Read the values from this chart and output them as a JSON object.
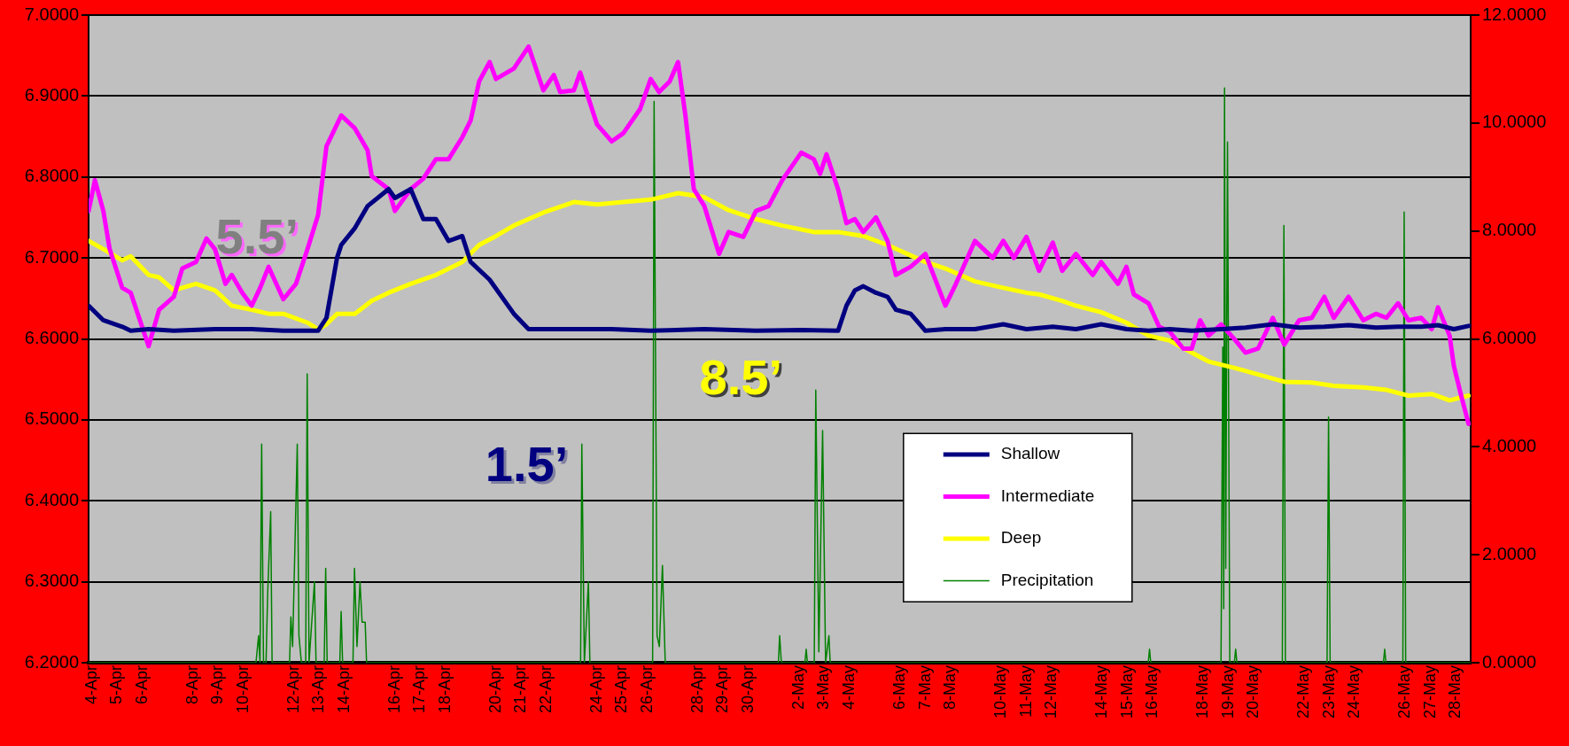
{
  "chart_data": {
    "type": "line",
    "grid": "y",
    "marker": "none",
    "line_style": "solid",
    "legend": "bottom right",
    "xlim": [
      "--04-03T21:00",
      "--05-28T14:00"
    ],
    "xticks": [
      {
        "value": "--04-04",
        "label": "4-Apr"
      },
      {
        "value": "--04-05",
        "label": "5-Apr"
      },
      {
        "value": "--04-06",
        "label": "6-Apr"
      },
      {
        "value": "--04-08",
        "label": "8-Apr"
      },
      {
        "value": "--04-09",
        "label": "9-Apr"
      },
      {
        "value": "--04-10",
        "label": "10-Apr"
      },
      {
        "value": "--04-12",
        "label": "12-Apr"
      },
      {
        "value": "--04-13",
        "label": "13-Apr"
      },
      {
        "value": "--04-14",
        "label": "14-Apr"
      },
      {
        "value": "--04-16",
        "label": "16-Apr"
      },
      {
        "value": "--04-17",
        "label": "17-Apr"
      },
      {
        "value": "--04-18",
        "label": "18-Apr"
      },
      {
        "value": "--04-20",
        "label": "20-Apr"
      },
      {
        "value": "--04-21",
        "label": "21-Apr"
      },
      {
        "value": "--04-22",
        "label": "22-Apr"
      },
      {
        "value": "--04-24",
        "label": "24-Apr"
      },
      {
        "value": "--04-25",
        "label": "25-Apr"
      },
      {
        "value": "--04-26",
        "label": "26-Apr"
      },
      {
        "value": "--04-28",
        "label": "28-Apr"
      },
      {
        "value": "--04-29",
        "label": "29-Apr"
      },
      {
        "value": "--04-30",
        "label": "30-Apr"
      },
      {
        "value": "--05-02",
        "label": "2-May"
      },
      {
        "value": "--05-03",
        "label": "3-May"
      },
      {
        "value": "--05-04",
        "label": "4-May"
      },
      {
        "value": "--05-06",
        "label": "6-May"
      },
      {
        "value": "--05-07",
        "label": "7-May"
      },
      {
        "value": "--05-08",
        "label": "8-May"
      },
      {
        "value": "--05-10",
        "label": "10-May"
      },
      {
        "value": "--05-11",
        "label": "11-May"
      },
      {
        "value": "--05-12",
        "label": "12-May"
      },
      {
        "value": "--05-14",
        "label": "14-May"
      },
      {
        "value": "--05-15",
        "label": "15-May"
      },
      {
        "value": "--05-16",
        "label": "16-May"
      },
      {
        "value": "--05-18",
        "label": "18-May"
      },
      {
        "value": "--05-19",
        "label": "19-May"
      },
      {
        "value": "--05-20",
        "label": "20-May"
      },
      {
        "value": "--05-22",
        "label": "22-May"
      },
      {
        "value": "--05-23",
        "label": "23-May"
      },
      {
        "value": "--05-24",
        "label": "24-May"
      },
      {
        "value": "--05-26",
        "label": "26-May"
      },
      {
        "value": "--05-27",
        "label": "27-May"
      },
      {
        "value": "--05-28",
        "label": "28-May"
      }
    ],
    "ylim": [
      6.2,
      7.0
    ],
    "yticks": [
      {
        "value": 6.2,
        "label": "6.2000"
      },
      {
        "value": 6.3,
        "label": "6.3000"
      },
      {
        "value": 6.4,
        "label": "6.4000"
      },
      {
        "value": 6.5,
        "label": "6.5000"
      },
      {
        "value": 6.6,
        "label": "6.6000"
      },
      {
        "value": 6.7,
        "label": "6.7000"
      },
      {
        "value": 6.8,
        "label": "6.8000"
      },
      {
        "value": 6.9,
        "label": "6.9000"
      },
      {
        "value": 7.0,
        "label": "7.0000"
      }
    ],
    "y2lim": [
      0,
      12
    ],
    "y2ticks": [
      {
        "value": 0,
        "label": "0.0000"
      },
      {
        "value": 2,
        "label": "2.0000"
      },
      {
        "value": 4,
        "label": "4.0000"
      },
      {
        "value": 6,
        "label": "6.0000"
      },
      {
        "value": 8,
        "label": "8.0000"
      },
      {
        "value": 10,
        "label": "10.0000"
      },
      {
        "value": 12,
        "label": "12.0000"
      }
    ],
    "annotations": [
      "5.5’",
      "1.5’",
      "8.5’"
    ],
    "series": [
      {
        "name": "Shallow",
        "color": "#000080",
        "x": [
          "--04-03T21:00",
          "--04-04T11:00",
          "--04-05T05:00",
          "--04-05T13:00",
          "--04-06T06:00",
          "--04-07T06:00",
          "--04-08T21:00",
          "--04-10T08:00",
          "--04-11T14:00",
          "--04-12T13:00",
          "--04-12T23:00",
          "--04-13T07:00",
          "--04-13T17:00",
          "--04-13T21:00",
          "--04-14T10:00",
          "--04-14T22:00",
          "--04-15T18:00",
          "--04-16T00:00",
          "--04-16T15:00",
          "--04-17T03:00",
          "--04-17T15:00",
          "--04-18T03:00",
          "--04-18T16:00",
          "--04-19T00:00",
          "--04-19T18:00",
          "--04-20T17:00",
          "--04-21T07:00",
          "--04-22T07:00",
          "--04-23T02:00",
          "--04-24T14:00",
          "--04-26T03:00",
          "--04-28T06:00",
          "--04-30T07:00",
          "--05-02T02:00",
          "--05-03T13:00",
          "--05-03T21:00",
          "--05-04T05:00",
          "--05-04T13:00",
          "--05-05T01:00",
          "--05-05T12:00",
          "--05-05T20:00",
          "--05-06T10:00",
          "--05-07T00:00",
          "--05-07T19:00",
          "--05-08T23:00",
          "--05-10T02:00",
          "--05-11T00:00",
          "--05-12T01:00",
          "--05-12T23:00",
          "--05-13T23:00",
          "--05-14T23:00",
          "--05-15T20:00",
          "--05-16T16:00",
          "--05-17T13:00",
          "--05-18T17:00",
          "--05-19T16:00",
          "--05-20T18:00",
          "--05-21T19:00",
          "--05-22T19:00",
          "--05-23T18:00",
          "--05-24T20:00",
          "--05-25T17:00",
          "--05-26T15:00",
          "--05-27T07:00",
          "--05-27T22:00",
          "--05-28T12:00"
        ],
        "values": [
          6.641,
          6.623,
          6.615,
          6.61,
          6.612,
          6.61,
          6.612,
          6.612,
          6.61,
          6.61,
          6.61,
          6.626,
          6.7,
          6.716,
          6.737,
          6.764,
          6.785,
          6.774,
          6.785,
          6.748,
          6.748,
          6.721,
          6.727,
          6.695,
          6.673,
          6.631,
          6.612,
          6.612,
          6.612,
          6.612,
          6.61,
          6.612,
          6.61,
          6.611,
          6.61,
          6.641,
          6.66,
          6.665,
          6.657,
          6.652,
          6.636,
          6.631,
          6.61,
          6.612,
          6.612,
          6.618,
          6.612,
          6.615,
          6.612,
          6.618,
          6.612,
          6.61,
          6.612,
          6.61,
          6.612,
          6.614,
          6.618,
          6.614,
          6.615,
          6.617,
          6.614,
          6.615,
          6.615,
          6.617,
          6.612,
          6.616
        ]
      },
      {
        "name": "Intermediate",
        "color": "#ff00ff",
        "x": [
          "--04-03T21:00",
          "--04-04T03:00",
          "--04-04T11:00",
          "--04-04T17:00",
          "--04-05T05:00",
          "--04-05T13:00",
          "--04-06T06:00",
          "--04-06T16:00",
          "--04-07T06:00",
          "--04-07T14:00",
          "--04-08T03:00",
          "--04-08T13:00",
          "--04-08T21:00",
          "--04-09T07:00",
          "--04-09T13:00",
          "--04-09T23:00",
          "--04-10T08:00",
          "--04-10T16:00",
          "--04-11T00:00",
          "--04-11T14:00",
          "--04-12T02:00",
          "--04-12T13:00",
          "--04-12T23:00",
          "--04-13T07:00",
          "--04-13T17:00",
          "--04-13T21:00",
          "--04-14T10:00",
          "--04-14T22:00",
          "--04-15T02:00",
          "--04-15T18:00",
          "--04-16T00:00",
          "--04-16T15:00",
          "--04-17T03:00",
          "--04-17T15:00",
          "--04-18T03:00",
          "--04-18T16:00",
          "--04-19T00:00",
          "--04-19T08:00",
          "--04-19T18:00",
          "--04-20T00:00",
          "--04-20T17:00",
          "--04-21T07:00",
          "--04-21T21:00",
          "--04-22T07:00",
          "--04-22T13:00",
          "--04-23T02:00",
          "--04-23T08:00",
          "--04-24T00:00",
          "--04-24T14:00",
          "--04-25T01:00",
          "--04-25T17:00",
          "--04-26T03:00",
          "--04-26T11:00",
          "--04-26T21:00",
          "--04-27T05:00",
          "--04-27T12:00",
          "--04-27T20:00",
          "--04-28T06:00",
          "--04-28T20:00",
          "--04-29T05:00",
          "--04-29T19:00",
          "--04-30T07:00",
          "--04-30T19:00",
          "--05-01T08:00",
          "--05-02T02:00",
          "--05-02T14:00",
          "--05-02T20:00",
          "--05-03T02:00",
          "--05-03T13:00",
          "--05-03T21:00",
          "--05-04T05:00",
          "--05-04T13:00",
          "--05-05T01:00",
          "--05-05T12:00",
          "--05-05T20:00",
          "--05-06T10:00",
          "--05-07T00:00",
          "--05-07T19:00",
          "--05-08T05:00",
          "--05-08T23:00",
          "--05-09T16:00",
          "--05-10T02:00",
          "--05-10T12:00",
          "--05-11T00:00",
          "--05-11T12:00",
          "--05-12T01:00",
          "--05-12T10:00",
          "--05-12T23:00",
          "--05-13T15:00",
          "--05-13T23:00",
          "--05-14T15:00",
          "--05-14T23:00",
          "--05-15T06:00",
          "--05-15T20:00",
          "--05-16T06:00",
          "--05-16T16:00",
          "--05-17T05:00",
          "--05-17T13:00",
          "--05-17T21:00",
          "--05-18T05:00",
          "--05-18T17:00",
          "--05-19T06:00",
          "--05-19T16:00",
          "--05-20T04:00",
          "--05-20T18:00",
          "--05-21T05:00",
          "--05-21T19:00",
          "--05-22T07:00",
          "--05-22T19:00",
          "--05-23T04:00",
          "--05-23T18:00",
          "--05-24T08:00",
          "--05-24T20:00",
          "--05-25T06:00",
          "--05-25T17:00",
          "--05-26T03:00",
          "--05-26T15:00",
          "--05-27T01:00",
          "--05-27T07:00",
          "--05-27T18:00",
          "--05-27T22:00",
          "--05-28T04:00",
          "--05-28T12:00"
        ],
        "values": [
          6.758,
          6.796,
          6.758,
          6.711,
          6.663,
          6.657,
          6.591,
          6.636,
          6.652,
          6.687,
          6.695,
          6.724,
          6.711,
          6.668,
          6.679,
          6.657,
          6.641,
          6.663,
          6.689,
          6.649,
          6.668,
          6.711,
          6.753,
          6.838,
          6.865,
          6.876,
          6.86,
          6.833,
          6.801,
          6.785,
          6.758,
          6.785,
          6.798,
          6.822,
          6.822,
          6.849,
          6.87,
          6.918,
          6.942,
          6.921,
          6.934,
          6.961,
          6.907,
          6.926,
          6.905,
          6.907,
          6.929,
          6.865,
          6.844,
          6.854,
          6.884,
          6.921,
          6.905,
          6.918,
          6.942,
          6.876,
          6.785,
          6.764,
          6.705,
          6.732,
          6.726,
          6.758,
          6.764,
          6.796,
          6.83,
          6.822,
          6.804,
          6.828,
          6.785,
          6.743,
          6.748,
          6.732,
          6.75,
          6.721,
          6.679,
          6.689,
          6.705,
          6.641,
          6.668,
          6.721,
          6.7,
          6.721,
          6.7,
          6.726,
          6.684,
          6.719,
          6.684,
          6.705,
          6.679,
          6.695,
          6.668,
          6.689,
          6.655,
          6.644,
          6.615,
          6.609,
          6.588,
          6.588,
          6.623,
          6.604,
          6.618,
          6.599,
          6.583,
          6.588,
          6.626,
          6.593,
          6.623,
          6.626,
          6.652,
          6.626,
          6.652,
          6.623,
          6.631,
          6.626,
          6.644,
          6.623,
          6.626,
          6.612,
          6.639,
          6.604,
          6.567,
          6.535,
          6.495
        ]
      },
      {
        "name": "Deep",
        "color": "#ffff00",
        "x": [
          "--04-03T21:00",
          "--04-04T11:00",
          "--04-05T05:00",
          "--04-05T13:00",
          "--04-06T06:00",
          "--04-06T16:00",
          "--04-07T06:00",
          "--04-07T14:00",
          "--04-08T03:00",
          "--04-08T21:00",
          "--04-09T13:00",
          "--04-10T08:00",
          "--04-11T00:00",
          "--04-11T14:00",
          "--04-12T13:00",
          "--04-12T23:00",
          "--04-13T07:00",
          "--04-13T17:00",
          "--04-14T10:00",
          "--04-15T02:00",
          "--04-15T18:00",
          "--04-16T15:00",
          "--04-17T15:00",
          "--04-18T16:00",
          "--04-19T08:00",
          "--04-20T00:00",
          "--04-20T17:00",
          "--04-21T21:00",
          "--04-23T02:00",
          "--04-24T00:00",
          "--04-25T01:00",
          "--04-26T03:00",
          "--04-27T05:00",
          "--04-28T06:00",
          "--04-29T05:00",
          "--04-30T07:00",
          "--05-01T08:00",
          "--05-02T14:00",
          "--05-03T13:00",
          "--05-04T13:00",
          "--05-05T12:00",
          "--05-06T10:00",
          "--05-07T00:00",
          "--05-07T19:00",
          "--05-08T23:00",
          "--05-10T02:00",
          "--05-11T00:00",
          "--05-11T12:00",
          "--05-12T10:00",
          "--05-12T23:00",
          "--05-13T23:00",
          "--05-14T23:00",
          "--05-15T20:00",
          "--05-16T16:00",
          "--05-17T13:00",
          "--05-18T05:00",
          "--05-19T06:00",
          "--05-20T04:00",
          "--05-21T05:00",
          "--05-22T07:00",
          "--05-23T04:00",
          "--05-24T08:00",
          "--05-25T06:00",
          "--05-26T03:00",
          "--05-27T01:00",
          "--05-27T18:00",
          "--05-28T12:00"
        ],
        "values": [
          6.721,
          6.711,
          6.697,
          6.702,
          6.679,
          6.676,
          6.66,
          6.663,
          6.668,
          6.66,
          6.641,
          6.636,
          6.631,
          6.631,
          6.62,
          6.612,
          6.618,
          6.631,
          6.631,
          6.647,
          6.657,
          6.668,
          6.679,
          6.695,
          6.716,
          6.727,
          6.74,
          6.756,
          6.769,
          6.766,
          6.769,
          6.772,
          6.78,
          6.775,
          6.759,
          6.748,
          6.74,
          6.732,
          6.732,
          6.727,
          6.716,
          6.703,
          6.695,
          6.687,
          6.671,
          6.663,
          6.657,
          6.655,
          6.647,
          6.641,
          6.633,
          6.62,
          6.604,
          6.598,
          6.583,
          6.572,
          6.564,
          6.556,
          6.547,
          6.546,
          6.542,
          6.54,
          6.537,
          6.53,
          6.532,
          6.524,
          6.53
        ]
      },
      {
        "name": "Precipitation",
        "color": "#008000",
        "axis": "y2",
        "x": [
          "--04-03T21:00",
          "--04-10T12:00",
          "--04-10T14:30",
          "--04-10T15:50",
          "--04-10T17:25",
          "--04-10T19:10",
          "--04-10T21:35",
          "--04-10T23:05",
          "--04-11T02:00",
          "--04-11T03:20",
          "--04-11T19:55",
          "--04-11T21:10",
          "--04-11T22:50",
          "--04-12T03:15",
          "--04-12T04:50",
          "--04-12T07:10",
          "--04-12T11:15",
          "--04-12T12:40",
          "--04-12T14:25",
          "--04-12T19:35",
          "--04-12T21:05",
          "--04-13T04:50",
          "--04-13T06:15",
          "--04-13T07:40",
          "--04-13T19:40",
          "--04-13T20:55",
          "--04-13T22:20",
          "--04-14T08:10",
          "--04-14T09:35",
          "--04-14T12:00",
          "--04-14T14:50",
          "--04-14T16:50",
          "--04-14T19:45",
          "--04-14T21:05",
          "--04-23T08:25",
          "--04-23T09:35",
          "--04-23T12:00",
          "--04-23T15:50",
          "--04-23T17:15",
          "--04-26T04:50",
          "--04-26T06:15",
          "--04-26T09:05",
          "--04-26T11:15",
          "--04-26T14:10",
          "--04-26T16:50",
          "--05-01T04:20",
          "--05-01T05:30",
          "--05-01T07:10",
          "--05-02T05:30",
          "--05-02T06:45",
          "--05-02T07:55",
          "--05-02T14:25",
          "--05-02T15:50",
          "--05-02T18:45",
          "--05-02T22:20",
          "--05-03T01:10",
          "--05-03T04:20",
          "--05-03T05:30",
          "--05-15T19:40",
          "--05-15T20:55",
          "--05-15T22:05",
          "--05-18T16:50",
          "--05-18T18:30",
          "--05-18T19:25",
          "--05-18T20:10",
          "--05-18T21:20",
          "--05-18T23:00",
          "--05-19T01:10",
          "--05-19T05:30",
          "--05-19T06:45",
          "--05-19T07:55",
          "--05-21T03:05",
          "--05-21T04:35",
          "--05-21T06:00",
          "--05-22T21:35",
          "--05-22T23:00",
          "--05-23T00:30",
          "--05-25T03:05",
          "--05-25T04:20",
          "--05-25T05:30",
          "--05-25T21:35",
          "--05-25T22:50",
          "--05-26T00:15",
          "--05-28T14:00"
        ],
        "values": [
          0,
          0,
          0.5,
          0,
          4.05,
          0,
          0,
          1.26,
          2.8,
          0,
          0,
          0.85,
          0.3,
          4.05,
          0.5,
          0,
          0,
          5.35,
          0,
          1.5,
          0,
          0,
          1.75,
          0,
          0,
          0.95,
          0,
          0,
          1.75,
          0.3,
          1.5,
          0.75,
          0.75,
          0,
          0,
          4.05,
          0,
          1.5,
          0,
          0,
          10.4,
          0.5,
          0.3,
          1.8,
          0,
          0,
          0.5,
          0,
          0,
          0.25,
          0,
          0,
          5.05,
          0.2,
          4.3,
          0,
          0.5,
          0,
          0,
          0.25,
          0,
          0,
          5.85,
          1.0,
          10.65,
          1.75,
          9.65,
          0,
          0,
          0.25,
          0,
          0,
          8.1,
          0,
          0,
          4.55,
          0,
          0,
          0.25,
          0,
          0,
          8.35,
          0,
          0
        ]
      }
    ]
  }
}
